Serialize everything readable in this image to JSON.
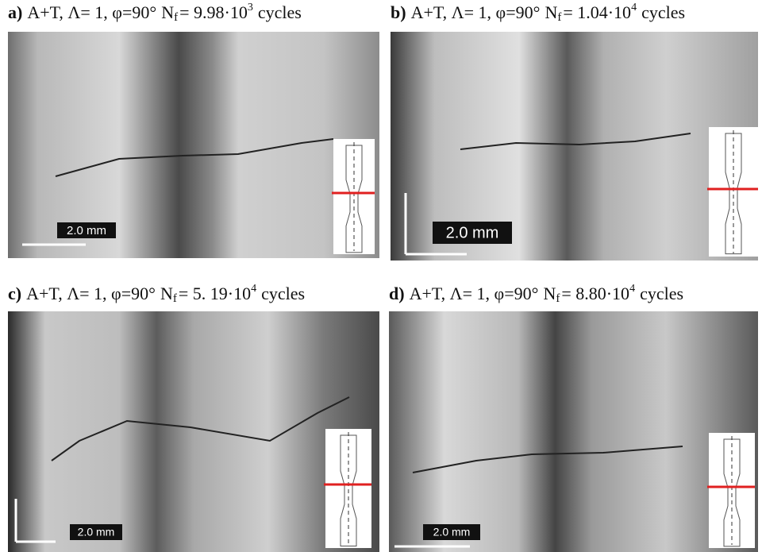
{
  "panels": [
    {
      "label": "a)",
      "caption": "A+T, Λ= 1, φ=90°",
      "n": "N",
      "n_sub": "f",
      "count": "= 9.98·10",
      "exponent": "3",
      "unit": "cycles",
      "scale_bar": "2.0 mm"
    },
    {
      "label": "b)",
      "caption": "A+T, Λ= 1, φ=90°",
      "n": "N",
      "n_sub": "f",
      "count": "= 1.04·10",
      "exponent": "4",
      "unit": "cycles",
      "scale_bar": "2.0 mm"
    },
    {
      "label": "c)",
      "caption": "A+T, Λ= 1, φ=90°",
      "n": "N",
      "n_sub": "f",
      "count": "= 5. 19·10",
      "exponent": "4",
      "unit": "cycles",
      "scale_bar": "2.0 mm"
    },
    {
      "label": "d)",
      "caption": "A+T, Λ= 1, φ=90°",
      "n": "N",
      "n_sub": "f",
      "count": "= 8.80·10",
      "exponent": "4",
      "unit": "cycles",
      "scale_bar": "2.0 mm"
    }
  ]
}
